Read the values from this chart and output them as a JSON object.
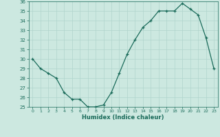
{
  "x": [
    0,
    1,
    2,
    3,
    4,
    5,
    6,
    7,
    8,
    9,
    10,
    11,
    12,
    13,
    14,
    15,
    16,
    17,
    18,
    19,
    20,
    21,
    22,
    23
  ],
  "y": [
    30,
    29,
    28.5,
    28,
    26.5,
    25.8,
    25.8,
    25,
    25,
    25.2,
    26.5,
    28.5,
    30.5,
    32,
    33.3,
    34,
    35,
    35,
    35,
    35.8,
    35.2,
    34.6,
    32.2,
    29
  ],
  "xlabel": "Humidex (Indice chaleur)",
  "ylim": [
    25,
    36
  ],
  "xlim": [
    -0.5,
    23.5
  ],
  "yticks": [
    25,
    26,
    27,
    28,
    29,
    30,
    31,
    32,
    33,
    34,
    35,
    36
  ],
  "xticks": [
    0,
    1,
    2,
    3,
    4,
    5,
    6,
    7,
    8,
    9,
    10,
    11,
    12,
    13,
    14,
    15,
    16,
    17,
    18,
    19,
    20,
    21,
    22,
    23
  ],
  "line_color": "#1a6b5a",
  "bg_color": "#cce8e0",
  "grid_color": "#b0d4cc"
}
